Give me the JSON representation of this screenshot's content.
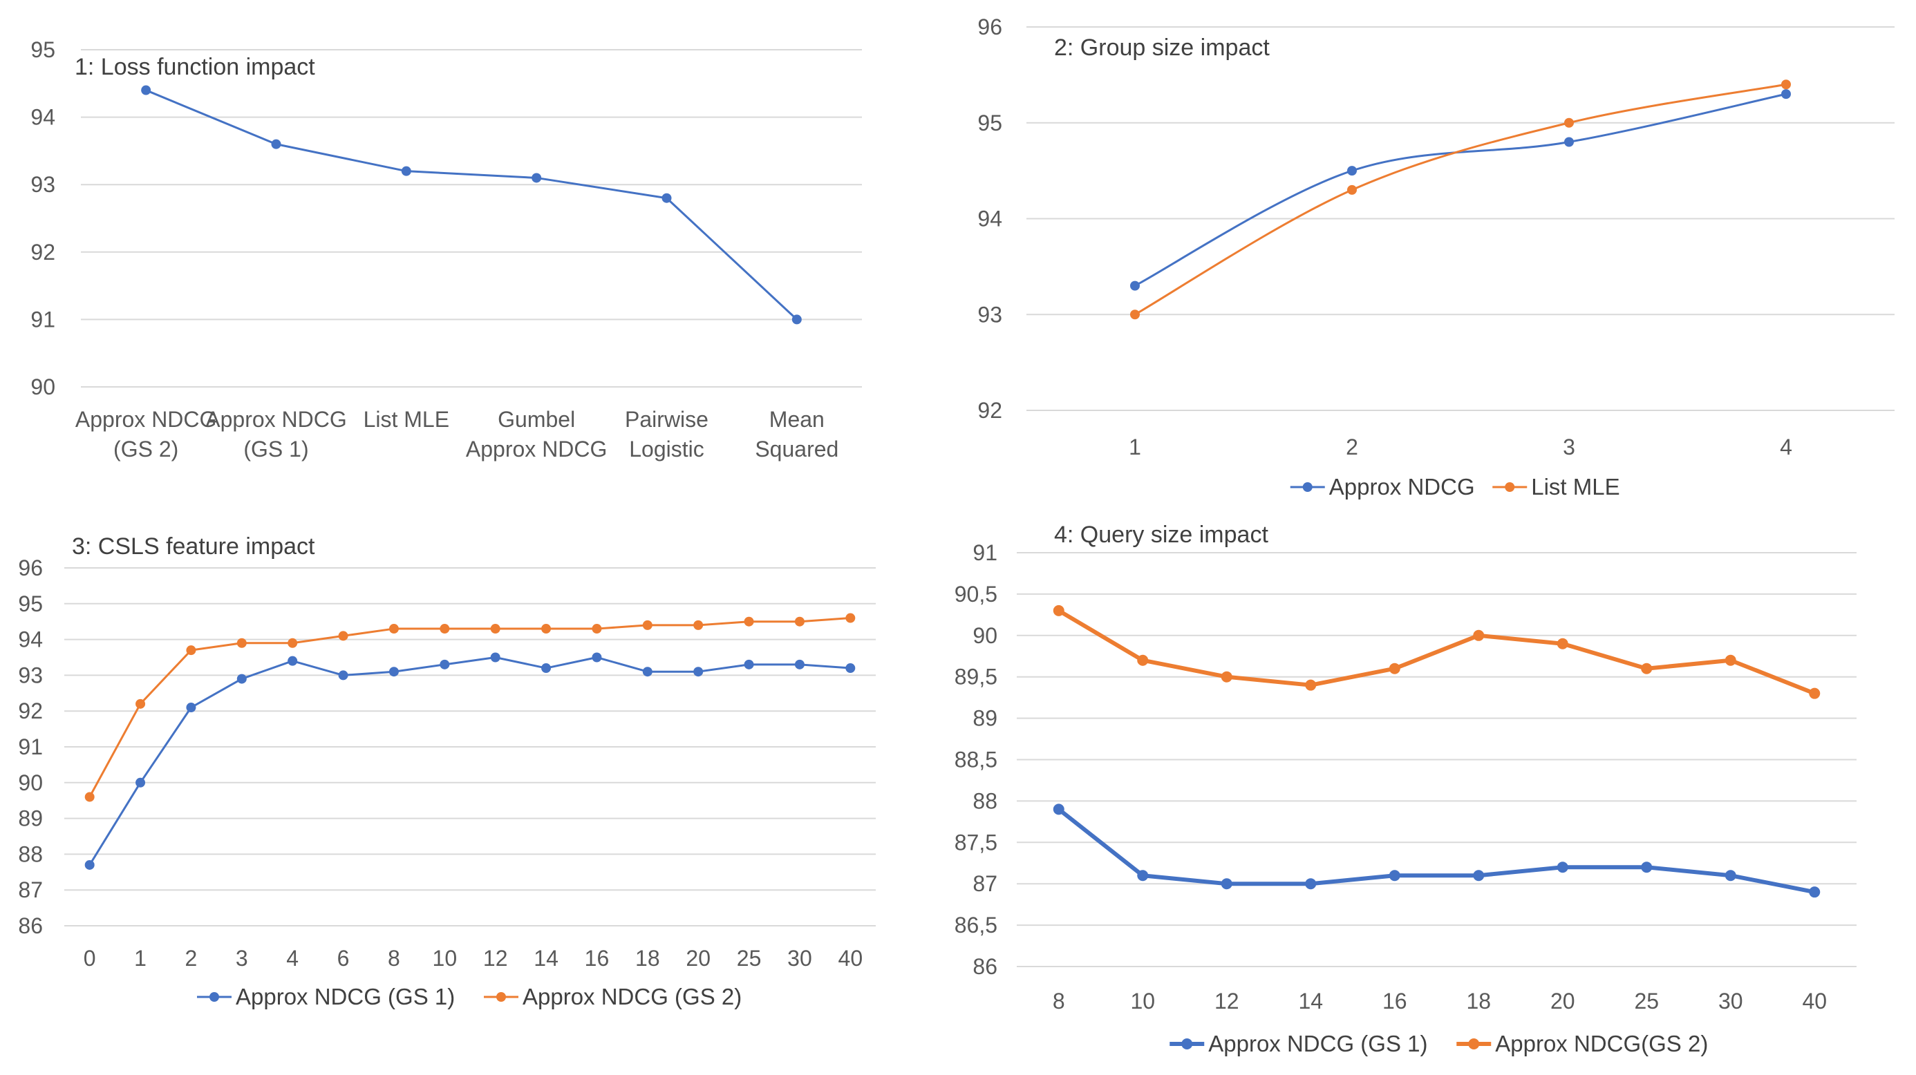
{
  "chart_data": [
    {
      "type": "line",
      "title": "1: Loss function impact",
      "categories": [
        "Approx NDCG (GS 2)",
        "Approx NDCG (GS 1)",
        "List MLE",
        "Gumbel Approx NDCG",
        "Pairwise Logistic",
        "Mean Squared"
      ],
      "ylim": [
        90,
        95
      ],
      "y_ticks": [
        "90",
        "91",
        "92",
        "93",
        "94",
        "95"
      ],
      "grid": true,
      "legend": "none",
      "smooth": false,
      "series": [
        {
          "values": [
            94.4,
            93.6,
            93.2,
            93.1,
            92.8,
            91.0
          ],
          "color": "#4472c4"
        }
      ]
    },
    {
      "type": "line",
      "title": "2: Group size impact",
      "categories": [
        "1",
        "2",
        "3",
        "4"
      ],
      "ylim": [
        92,
        96
      ],
      "y_ticks": [
        "92",
        "93",
        "94",
        "95",
        "96"
      ],
      "grid": true,
      "legend": "bottom",
      "smooth": true,
      "series": [
        {
          "name": "Approx NDCG",
          "values": [
            93.3,
            94.5,
            94.8,
            95.3
          ],
          "color": "#4472c4"
        },
        {
          "name": "List MLE",
          "values": [
            93.0,
            94.3,
            95.0,
            95.4
          ],
          "color": "#ed7d31"
        }
      ]
    },
    {
      "type": "line",
      "title": "3: CSLS feature impact",
      "categories": [
        "0",
        "1",
        "2",
        "3",
        "4",
        "6",
        "8",
        "10",
        "12",
        "14",
        "16",
        "18",
        "20",
        "25",
        "30",
        "40"
      ],
      "ylim": [
        86,
        96
      ],
      "y_ticks": [
        "86",
        "87",
        "88",
        "89",
        "90",
        "91",
        "92",
        "93",
        "94",
        "95",
        "96"
      ],
      "grid": true,
      "legend": "bottom",
      "smooth": false,
      "series": [
        {
          "name": "Approx NDCG (GS 1)",
          "values": [
            87.7,
            90.0,
            92.1,
            92.9,
            93.4,
            93.0,
            93.1,
            93.3,
            93.5,
            93.2,
            93.5,
            93.1,
            93.1,
            93.3,
            93.3,
            93.2
          ],
          "color": "#4472c4"
        },
        {
          "name": "Approx NDCG (GS 2)",
          "values": [
            89.6,
            92.2,
            93.7,
            93.9,
            93.9,
            94.1,
            94.3,
            94.3,
            94.3,
            94.3,
            94.3,
            94.4,
            94.4,
            94.5,
            94.5,
            94.6
          ],
          "color": "#ed7d31"
        }
      ]
    },
    {
      "type": "line",
      "title": "4: Query size impact",
      "categories": [
        "8",
        "10",
        "12",
        "14",
        "16",
        "18",
        "20",
        "25",
        "30",
        "40"
      ],
      "ylim": [
        86,
        91
      ],
      "y_ticks": [
        "86",
        "86,5",
        "87",
        "87,5",
        "88",
        "88,5",
        "89",
        "89,5",
        "90",
        "90,5",
        "91"
      ],
      "grid": true,
      "legend": "bottom",
      "smooth": false,
      "series": [
        {
          "name": "Approx NDCG (GS 1)",
          "values": [
            87.9,
            87.1,
            87.0,
            87.0,
            87.1,
            87.1,
            87.2,
            87.2,
            87.1,
            86.9
          ],
          "color": "#4472c4"
        },
        {
          "name": "Approx NDCG(GS 2)",
          "values": [
            90.3,
            89.7,
            89.5,
            89.4,
            89.6,
            90.0,
            89.9,
            89.6,
            89.7,
            89.3
          ],
          "color": "#ed7d31"
        }
      ]
    }
  ]
}
